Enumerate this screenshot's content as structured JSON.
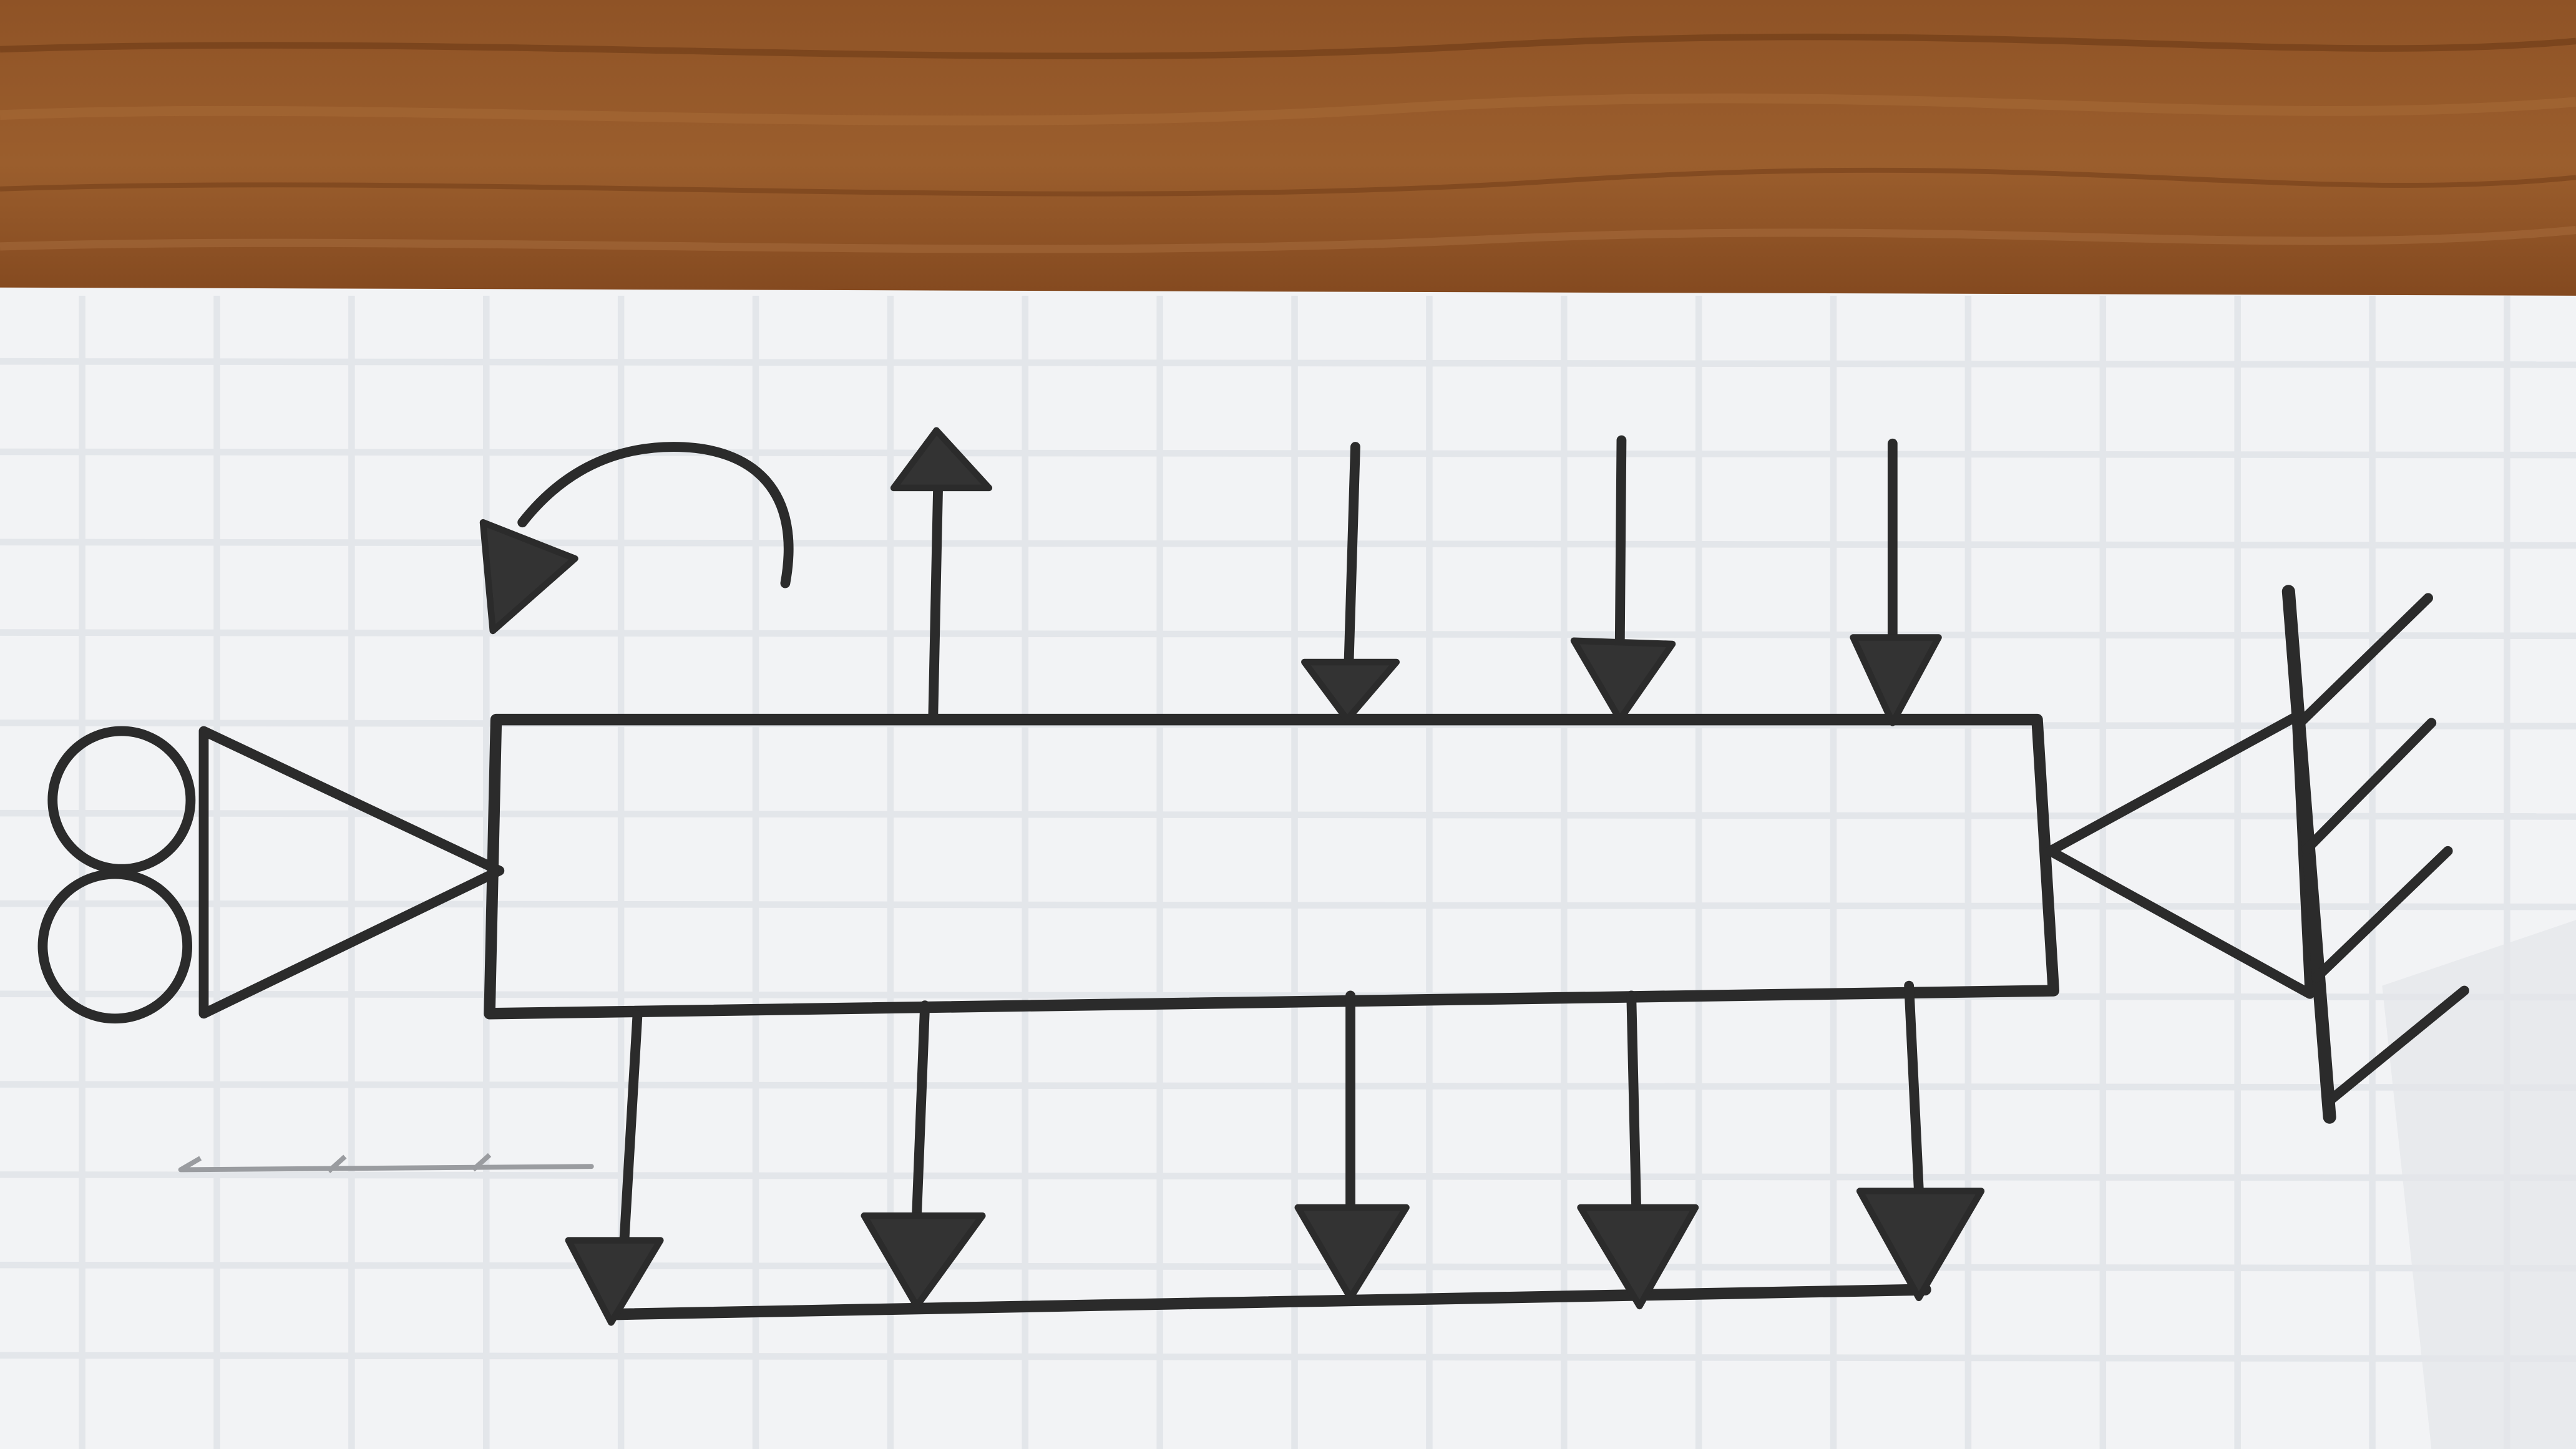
{
  "diagram": {
    "kind": "beam free-body sketch on grid paper",
    "elements": [
      "roller-support",
      "pin-wall-support",
      "beam",
      "moment-arrow",
      "upward-point-load",
      "downward-point-loads-top",
      "distributed-load-bottom"
    ],
    "top_down_loads": 3,
    "top_up_loads": 1,
    "bottom_load_arrows": 5,
    "colors": {
      "wood": "#8a4e22",
      "paper": "#f3f4f6",
      "ink": "#2b2b2b"
    }
  }
}
